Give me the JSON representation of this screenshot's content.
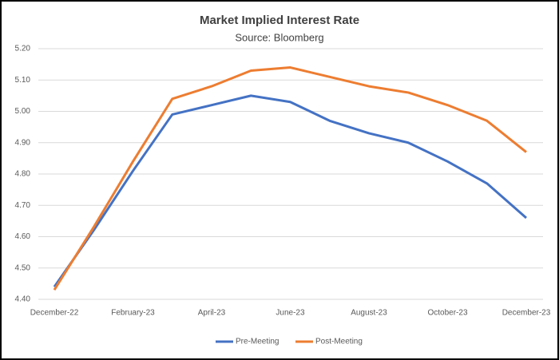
{
  "chart_data": {
    "type": "line",
    "title": "Market Implied Interest Rate",
    "subtitle": "Source: Bloomberg",
    "categories": [
      "December-22",
      null,
      "February-23",
      null,
      "April-23",
      null,
      "June-23",
      null,
      "August-23",
      null,
      "October-23",
      null,
      "December-23"
    ],
    "series": [
      {
        "name": "Pre-Meeting",
        "color": "#4472c4",
        "values": [
          4.44,
          4.62,
          4.81,
          4.99,
          5.02,
          5.05,
          5.03,
          4.97,
          4.93,
          4.9,
          4.84,
          4.77,
          4.66
        ]
      },
      {
        "name": "Post-Meeting",
        "color": "#ed7d31",
        "values": [
          4.43,
          4.63,
          4.84,
          5.04,
          5.08,
          5.13,
          5.14,
          5.11,
          5.08,
          5.06,
          5.02,
          4.97,
          4.87
        ]
      }
    ],
    "ylim": [
      4.4,
      5.2
    ],
    "yticks": [
      {
        "value": 4.4,
        "label": "4.40"
      },
      {
        "value": 4.5,
        "label": "4.50"
      },
      {
        "value": 4.6,
        "label": "4.60"
      },
      {
        "value": 4.7,
        "label": "4.70"
      },
      {
        "value": 4.8,
        "label": "4.80"
      },
      {
        "value": 4.9,
        "label": "4.90"
      },
      {
        "value": 5.0,
        "label": "5.00"
      },
      {
        "value": 5.1,
        "label": "5.10"
      },
      {
        "value": 5.2,
        "label": "5.20"
      }
    ],
    "grid": true,
    "legend": "bottom"
  }
}
